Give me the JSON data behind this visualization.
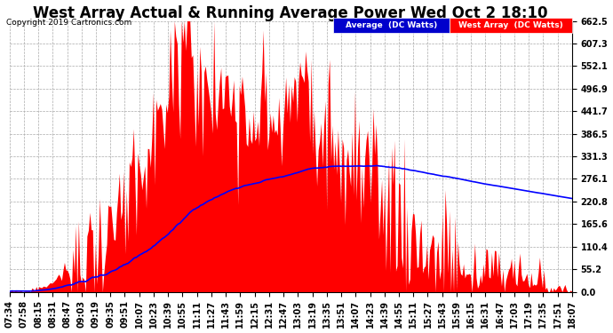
{
  "title": "West Array Actual & Running Average Power Wed Oct 2 18:10",
  "copyright": "Copyright 2019 Cartronics.com",
  "legend_avg": "Average  (DC Watts)",
  "legend_west": "West Array  (DC Watts)",
  "ytick_labels": [
    "0.0",
    "55.2",
    "110.4",
    "165.6",
    "220.8",
    "276.1",
    "331.3",
    "386.5",
    "441.7",
    "496.9",
    "552.1",
    "607.3",
    "662.5"
  ],
  "ytick_values": [
    0.0,
    55.2,
    110.4,
    165.6,
    220.8,
    276.1,
    331.3,
    386.5,
    441.7,
    496.9,
    552.1,
    607.3,
    662.5
  ],
  "ylim": [
    0.0,
    662.5
  ],
  "background_color": "#ffffff",
  "grid_color": "#aaaaaa",
  "red_color": "#ff0000",
  "blue_color": "#0000ff",
  "legend_blue_bg": "#0000cc",
  "legend_red_bg": "#ff0000",
  "title_fontsize": 12,
  "tick_fontsize": 7,
  "copyright_fontsize": 6.5,
  "x_tick_labels": [
    "07:34",
    "07:58",
    "08:15",
    "08:31",
    "08:47",
    "09:03",
    "09:19",
    "09:35",
    "09:51",
    "10:07",
    "10:23",
    "10:39",
    "10:55",
    "11:11",
    "11:27",
    "11:43",
    "11:59",
    "12:15",
    "12:31",
    "12:47",
    "13:03",
    "13:19",
    "13:35",
    "13:51",
    "14:07",
    "14:23",
    "14:39",
    "14:55",
    "15:11",
    "15:27",
    "15:43",
    "15:59",
    "16:15",
    "16:31",
    "16:47",
    "17:03",
    "17:19",
    "17:35",
    "17:51",
    "18:07"
  ]
}
